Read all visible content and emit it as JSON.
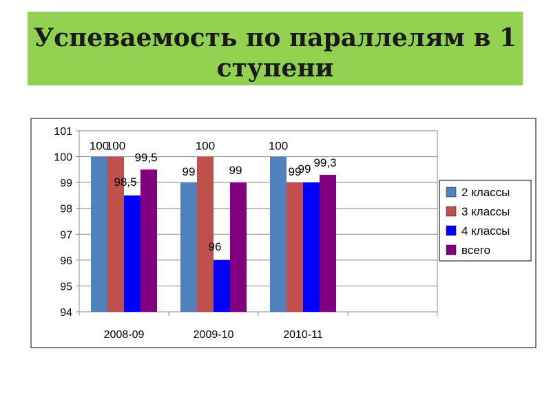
{
  "slide": {
    "title_line1": "Успеваемость по параллелям в 1",
    "title_line2": "ступени",
    "title_bg": "#92d050"
  },
  "chart_data": {
    "type": "bar",
    "categories": [
      "2008-09",
      "2009-10",
      "2010-11",
      ""
    ],
    "series": [
      {
        "name": "2 классы",
        "color": "#4f81bd",
        "values": [
          100,
          99,
          100,
          null
        ]
      },
      {
        "name": "3 классы",
        "color": "#c0504d",
        "values": [
          100,
          100,
          99,
          null
        ]
      },
      {
        "name": "4 классы",
        "color": "#0000ff",
        "values": [
          98.5,
          96,
          99,
          null
        ]
      },
      {
        "name": "всего",
        "color": "#800080",
        "values": [
          99.5,
          99,
          99.3,
          null
        ]
      }
    ],
    "data_labels": [
      [
        "100",
        "99",
        "100",
        null
      ],
      [
        "100",
        "100",
        "99",
        null
      ],
      [
        "98,5",
        "96",
        "99",
        null
      ],
      [
        "99,5",
        "99",
        "99,3",
        null
      ]
    ],
    "ylim": [
      94,
      101
    ],
    "yticks": [
      "94",
      "95",
      "96",
      "97",
      "98",
      "99",
      "100",
      "101"
    ],
    "grid": true,
    "legend": "right"
  }
}
